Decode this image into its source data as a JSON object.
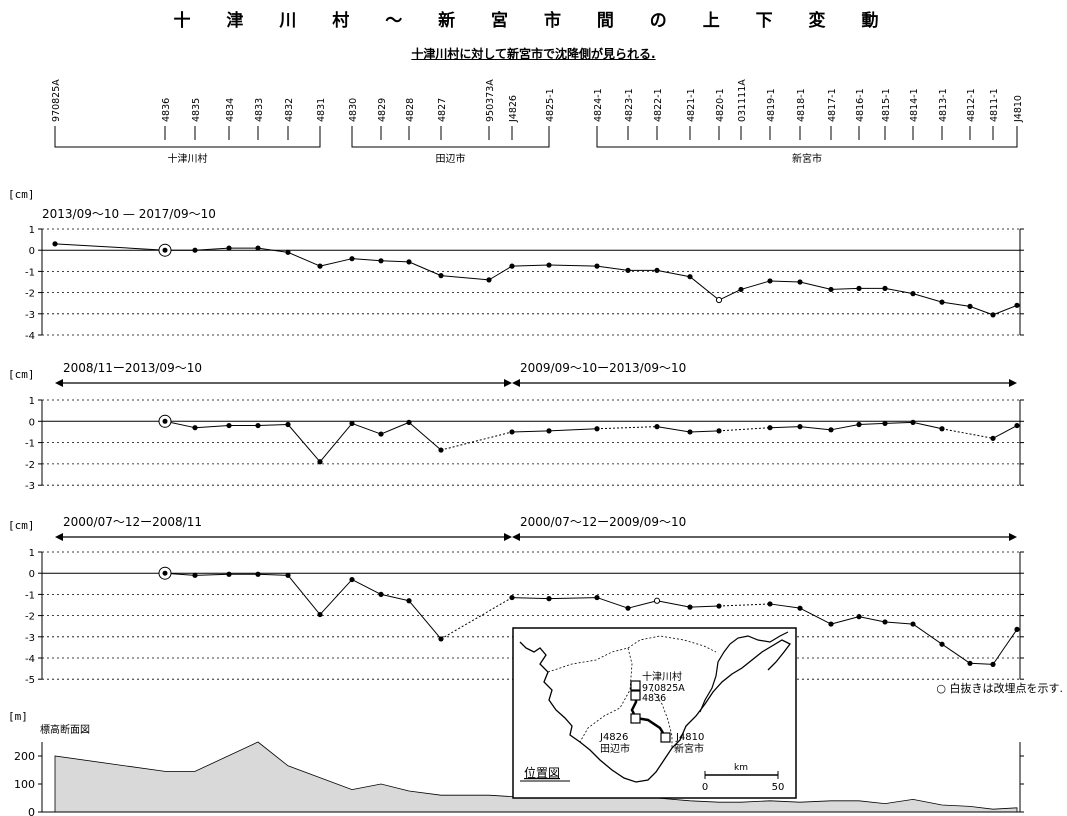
{
  "title": "十 津 川 村 〜 新 宮 市 間 の 上 下 変 動",
  "subtitle": "十津川村に対して新宮市で沈降側が見られる.",
  "groups": [
    {
      "label": "十津川村",
      "from": "970825A",
      "to": "4831"
    },
    {
      "label": "田辺市",
      "from": "4830",
      "to": "4825-1"
    },
    {
      "label": "新宮市",
      "from": "4824-1",
      "to": "J4810"
    }
  ],
  "chart_data": {
    "type": "line",
    "stations": [
      "970825A",
      "4836",
      "4835",
      "4834",
      "4833",
      "4832",
      "4831",
      "4830",
      "4829",
      "4828",
      "4827",
      "950373A",
      "J4826",
      "4825-1",
      "4824-1",
      "4823-1",
      "4822-1",
      "4821-1",
      "4820-1",
      "031111A",
      "4819-1",
      "4818-1",
      "4817-1",
      "4816-1",
      "4815-1",
      "4814-1",
      "4813-1",
      "4812-1",
      "4811-1",
      "J4810"
    ],
    "reference_station": "4836",
    "panels": [
      {
        "unit": "[cm]",
        "ylim": [
          -4,
          1
        ],
        "yticks": [
          1,
          0,
          -1,
          -2,
          -3,
          -4
        ],
        "periods": [
          {
            "label": "2013/09〜10 — 2017/09〜10",
            "from": "970825A",
            "to": "J4810",
            "arrow": false,
            "points": [
              {
                "s": "970825A",
                "v": 0.3
              },
              {
                "s": "4836",
                "v": 0
              },
              {
                "s": "4835",
                "v": 0.0
              },
              {
                "s": "4834",
                "v": 0.1
              },
              {
                "s": "4833",
                "v": 0.1
              },
              {
                "s": "4832",
                "v": -0.1
              },
              {
                "s": "4831",
                "v": -0.75
              },
              {
                "s": "4830",
                "v": -0.4
              },
              {
                "s": "4829",
                "v": -0.5
              },
              {
                "s": "4828",
                "v": -0.55
              },
              {
                "s": "4827",
                "v": -1.2
              },
              {
                "s": "950373A",
                "v": -1.4
              },
              {
                "s": "J4826",
                "v": -0.75
              },
              {
                "s": "4825-1",
                "v": -0.7
              },
              {
                "s": "4824-1",
                "v": -0.75
              },
              {
                "s": "4823-1",
                "v": -0.95
              },
              {
                "s": "4822-1",
                "v": -0.95
              },
              {
                "s": "4821-1",
                "v": -1.25
              },
              {
                "s": "4820-1",
                "v": -2.35,
                "open": true
              },
              {
                "s": "031111A",
                "v": -1.85
              },
              {
                "s": "4819-1",
                "v": -1.45
              },
              {
                "s": "4818-1",
                "v": -1.5
              },
              {
                "s": "4817-1",
                "v": -1.85
              },
              {
                "s": "4816-1",
                "v": -1.8
              },
              {
                "s": "4815-1",
                "v": -1.8
              },
              {
                "s": "4814-1",
                "v": -2.05
              },
              {
                "s": "4813-1",
                "v": -2.45
              },
              {
                "s": "4812-1",
                "v": -2.65
              },
              {
                "s": "4811-1",
                "v": -3.05
              },
              {
                "s": "J4810",
                "v": -2.6
              }
            ],
            "dotted_segments": []
          }
        ]
      },
      {
        "unit": "[cm]",
        "ylim": [
          -3,
          1
        ],
        "yticks": [
          1,
          0,
          -1,
          -2,
          -3
        ],
        "periods": [
          {
            "label": "2008/11ー2013/09〜10",
            "from": "970825A",
            "to": "J4826",
            "arrow": true,
            "points": [
              {
                "s": "4836",
                "v": 0
              },
              {
                "s": "4835",
                "v": -0.3
              },
              {
                "s": "4834",
                "v": -0.2
              },
              {
                "s": "4833",
                "v": -0.2
              },
              {
                "s": "4832",
                "v": -0.15
              },
              {
                "s": "4831",
                "v": -1.9
              },
              {
                "s": "4830",
                "v": -0.1
              },
              {
                "s": "4829",
                "v": -0.6
              },
              {
                "s": "4828",
                "v": -0.05
              },
              {
                "s": "4827",
                "v": -1.35
              }
            ]
          },
          {
            "label": "2009/09〜10ー2013/09〜10",
            "from": "J4826",
            "to": "J4810",
            "arrow": true,
            "points": [
              {
                "s": "J4826",
                "v": -0.5
              },
              {
                "s": "4825-1",
                "v": -0.45
              },
              {
                "s": "4824-1",
                "v": -0.35
              },
              {
                "s": "4822-1",
                "v": -0.25
              },
              {
                "s": "4821-1",
                "v": -0.5
              },
              {
                "s": "4820-1",
                "v": -0.45
              },
              {
                "s": "4819-1",
                "v": -0.3
              },
              {
                "s": "4818-1",
                "v": -0.25
              },
              {
                "s": "4817-1",
                "v": -0.4
              },
              {
                "s": "4816-1",
                "v": -0.15
              },
              {
                "s": "4815-1",
                "v": -0.1
              },
              {
                "s": "4814-1",
                "v": -0.05
              },
              {
                "s": "4813-1",
                "v": -0.35
              },
              {
                "s": "4811-1",
                "v": -0.8
              },
              {
                "s": "J4810",
                "v": -0.2
              }
            ]
          }
        ],
        "dotted": [
          [
            "4827",
            "J4826"
          ],
          [
            "4824-1",
            "4822-1"
          ],
          [
            "4820-1",
            "4819-1"
          ],
          [
            "4813-1",
            "4811-1"
          ]
        ]
      },
      {
        "unit": "[cm]",
        "ylim": [
          -5,
          1
        ],
        "yticks": [
          1,
          0,
          -1,
          -2,
          -3,
          -4,
          -5
        ],
        "periods": [
          {
            "label": "2000/07〜12ー2008/11",
            "from": "970825A",
            "to": "J4826",
            "arrow": true,
            "points": [
              {
                "s": "4836",
                "v": 0
              },
              {
                "s": "4835",
                "v": -0.1
              },
              {
                "s": "4834",
                "v": -0.05
              },
              {
                "s": "4833",
                "v": -0.05
              },
              {
                "s": "4832",
                "v": -0.1
              },
              {
                "s": "4831",
                "v": -1.95
              },
              {
                "s": "4830",
                "v": -0.3
              },
              {
                "s": "4829",
                "v": -1.0
              },
              {
                "s": "4828",
                "v": -1.3
              },
              {
                "s": "4827",
                "v": -3.1
              }
            ]
          },
          {
            "label": "2000/07〜12ー2009/09〜10",
            "from": "J4826",
            "to": "J4810",
            "arrow": true,
            "points": [
              {
                "s": "J4826",
                "v": -1.15
              },
              {
                "s": "4825-1",
                "v": -1.2
              },
              {
                "s": "4824-1",
                "v": -1.15
              },
              {
                "s": "4823-1",
                "v": -1.65
              },
              {
                "s": "4822-1",
                "v": -1.3,
                "open": true
              },
              {
                "s": "4821-1",
                "v": -1.6
              },
              {
                "s": "4820-1",
                "v": -1.55
              },
              {
                "s": "4819-1",
                "v": -1.45
              },
              {
                "s": "4818-1",
                "v": -1.65
              },
              {
                "s": "4817-1",
                "v": -2.4
              },
              {
                "s": "4816-1",
                "v": -2.05
              },
              {
                "s": "4815-1",
                "v": -2.3
              },
              {
                "s": "4814-1",
                "v": -2.4
              },
              {
                "s": "4813-1",
                "v": -3.35
              },
              {
                "s": "4812-1",
                "v": -4.25
              },
              {
                "s": "4811-1",
                "v": -4.3
              },
              {
                "s": "J4810",
                "v": -2.65
              }
            ]
          }
        ],
        "dotted": [
          [
            "4827",
            "J4826"
          ],
          [
            "4820-1",
            "4819-1"
          ]
        ]
      }
    ],
    "elevation": {
      "unit": "[m]",
      "label": "標高断面図",
      "ylim": [
        0,
        250
      ],
      "yticks": [
        200,
        100,
        0
      ],
      "profile": [
        {
          "s": "970825A",
          "v": 200
        },
        {
          "s": "4836",
          "v": 145
        },
        {
          "s": "4835",
          "v": 145
        },
        {
          "s": "4833",
          "v": 250
        },
        {
          "s": "4832",
          "v": 165
        },
        {
          "s": "4830",
          "v": 80
        },
        {
          "s": "4829",
          "v": 100
        },
        {
          "s": "4828",
          "v": 75
        },
        {
          "s": "4827",
          "v": 60
        },
        {
          "s": "950373A",
          "v": 60
        },
        {
          "s": "J4826",
          "v": 55
        },
        {
          "s": "4825-1",
          "v": 62
        },
        {
          "s": "4824-1",
          "v": 55
        },
        {
          "s": "4823-1",
          "v": 50
        },
        {
          "s": "4822-1",
          "v": 50
        },
        {
          "s": "4821-1",
          "v": 40
        },
        {
          "s": "4820-1",
          "v": 35
        },
        {
          "s": "031111A",
          "v": 35
        },
        {
          "s": "4819-1",
          "v": 40
        },
        {
          "s": "4818-1",
          "v": 35
        },
        {
          "s": "4817-1",
          "v": 40
        },
        {
          "s": "4816-1",
          "v": 40
        },
        {
          "s": "4815-1",
          "v": 30
        },
        {
          "s": "4814-1",
          "v": 45
        },
        {
          "s": "4813-1",
          "v": 25
        },
        {
          "s": "4812-1",
          "v": 20
        },
        {
          "s": "4811-1",
          "v": 10
        },
        {
          "s": "J4810",
          "v": 15
        }
      ]
    }
  },
  "legend_note": "○ 白抜きは改埋点を示す.",
  "location_map": {
    "title": "位置図",
    "labels": {
      "village": "十津川村",
      "station_a": "970825A",
      "station_b": "4836",
      "station_c": "J4826",
      "city_c": "田辺市",
      "station_d": "J4810",
      "city_d": "新宮市"
    },
    "scale": {
      "unit": "km",
      "min": "0",
      "max": "50"
    }
  }
}
